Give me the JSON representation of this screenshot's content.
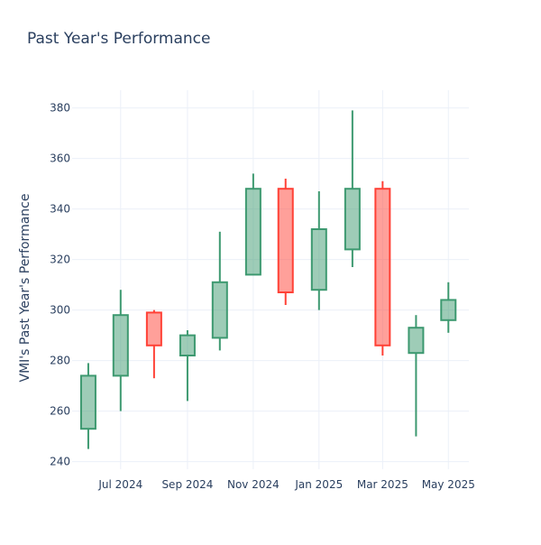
{
  "chart_data": {
    "type": "candlestick",
    "title": "Past Year's Performance",
    "xlabel": "",
    "ylabel": "VMI's Past Year's Performance",
    "ylim": [
      237,
      387
    ],
    "yticks": [
      240,
      260,
      280,
      300,
      320,
      340,
      360,
      380
    ],
    "x_tick_labels": [
      "Jul 2024",
      "Sep 2024",
      "Nov 2024",
      "Jan 2025",
      "Mar 2025",
      "May 2025"
    ],
    "x_tick_dates": [
      "2024-07-01",
      "2024-09-01",
      "2024-11-01",
      "2025-01-01",
      "2025-03-01",
      "2025-05-01"
    ],
    "x_range": [
      "2024-05-17",
      "2025-05-20"
    ],
    "grid": true,
    "colors": {
      "increasing": "#3d9970",
      "decreasing": "#ff4136"
    },
    "candles": [
      {
        "date": "2024-06-01",
        "open": 253,
        "high": 279,
        "low": 245,
        "close": 274
      },
      {
        "date": "2024-07-01",
        "open": 274,
        "high": 308,
        "low": 260,
        "close": 298
      },
      {
        "date": "2024-08-01",
        "open": 299,
        "high": 300,
        "low": 273,
        "close": 286
      },
      {
        "date": "2024-09-01",
        "open": 282,
        "high": 292,
        "low": 264,
        "close": 290
      },
      {
        "date": "2024-10-01",
        "open": 289,
        "high": 331,
        "low": 284,
        "close": 311
      },
      {
        "date": "2024-11-01",
        "open": 314,
        "high": 354,
        "low": 314,
        "close": 348
      },
      {
        "date": "2024-12-01",
        "open": 348,
        "high": 352,
        "low": 302,
        "close": 307
      },
      {
        "date": "2025-01-01",
        "open": 308,
        "high": 347,
        "low": 300,
        "close": 332
      },
      {
        "date": "2025-02-01",
        "open": 324,
        "high": 379,
        "low": 317,
        "close": 348
      },
      {
        "date": "2025-03-01",
        "open": 348,
        "high": 351,
        "low": 282,
        "close": 286
      },
      {
        "date": "2025-04-01",
        "open": 283,
        "high": 298,
        "low": 250,
        "close": 293
      },
      {
        "date": "2025-05-01",
        "open": 296,
        "high": 311,
        "low": 291,
        "close": 304
      }
    ]
  }
}
